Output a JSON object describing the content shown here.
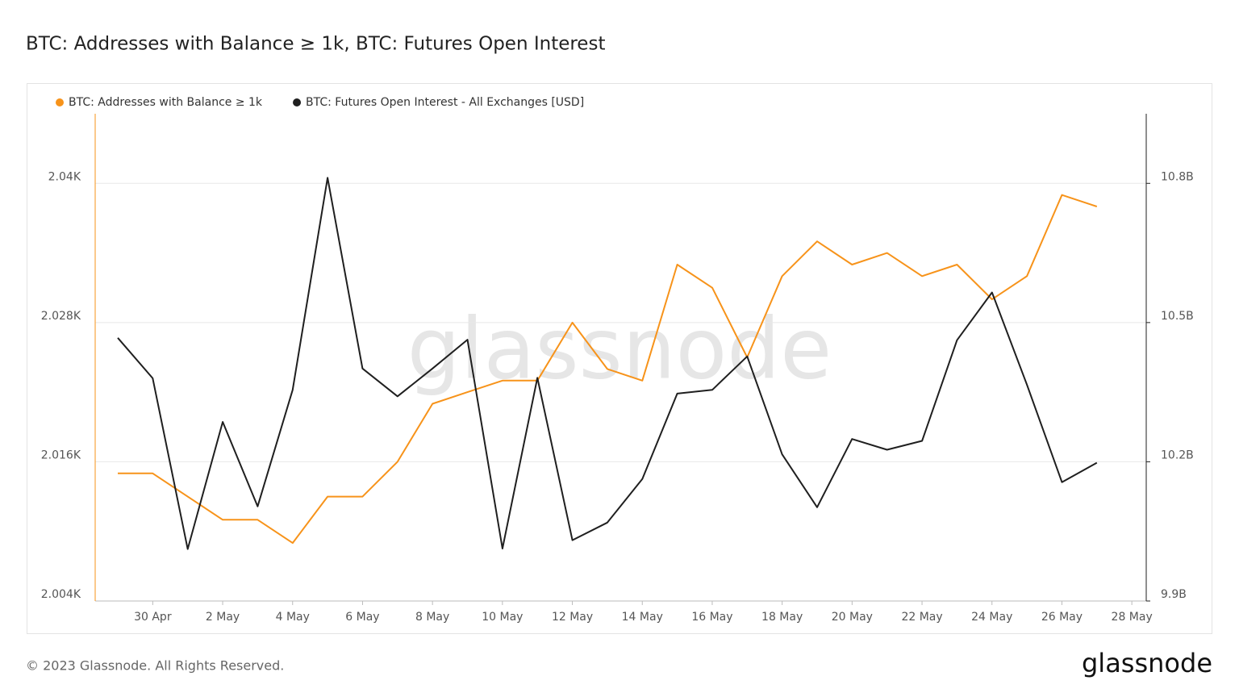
{
  "chart_data": {
    "type": "line",
    "title": "BTC: Addresses with Balance ≥ 1k, BTC: Futures Open Interest",
    "watermark": "glassnode",
    "x": [
      "29 Apr",
      "30 Apr",
      "1 May",
      "2 May",
      "3 May",
      "4 May",
      "5 May",
      "6 May",
      "7 May",
      "8 May",
      "9 May",
      "10 May",
      "11 May",
      "12 May",
      "13 May",
      "14 May",
      "15 May",
      "16 May",
      "17 May",
      "18 May",
      "19 May",
      "20 May",
      "21 May",
      "22 May",
      "23 May",
      "24 May",
      "25 May",
      "26 May",
      "27 May"
    ],
    "xticks": [
      "30 Apr",
      "2 May",
      "4 May",
      "6 May",
      "8 May",
      "10 May",
      "12 May",
      "14 May",
      "16 May",
      "18 May",
      "20 May",
      "22 May",
      "24 May",
      "26 May",
      "28 May"
    ],
    "series": [
      {
        "name": "BTC: Addresses with Balance ≥ 1k",
        "color": "#f7931a",
        "axis": "y",
        "values": [
          2015,
          2015,
          2013,
          2011,
          2011,
          2009,
          2013,
          2013,
          2016,
          2021,
          2022,
          2023,
          2023,
          2028,
          2024,
          2023,
          2033,
          2031,
          2025,
          2032,
          2035,
          2033,
          2034,
          2032,
          2033,
          2030,
          2032,
          2039,
          2038
        ]
      },
      {
        "name": "BTC: Futures Open Interest - All Exchanges [USD]",
        "color": "#1f1f1f",
        "axis": "y2",
        "values": [
          10467000000,
          10380000000,
          10012000000,
          10286000000,
          10104000000,
          10355000000,
          10812000000,
          10401000000,
          10341000000,
          10401000000,
          10463000000,
          10013000000,
          10381000000,
          10031000000,
          10069000000,
          10163000000,
          10347000000,
          10355000000,
          10427000000,
          10216000000,
          10102000000,
          10249000000,
          10226000000,
          10245000000,
          10462000000,
          10565000000,
          10366000000,
          10156000000,
          10198000000
        ]
      }
    ],
    "ylim": [
      2004,
      2046
    ],
    "yticks": [
      {
        "value": 2004,
        "label": "2.004K"
      },
      {
        "value": 2016,
        "label": "2.016K"
      },
      {
        "value": 2028,
        "label": "2.028K"
      },
      {
        "value": 2040,
        "label": "2.04K"
      }
    ],
    "y2lim": [
      9900000000,
      10950000000
    ],
    "y2ticks": [
      {
        "value": 9900000000,
        "label": "9.9B"
      },
      {
        "value": 10200000000,
        "label": "10.2B"
      },
      {
        "value": 10500000000,
        "label": "10.5B"
      },
      {
        "value": 10800000000,
        "label": "10.8B"
      }
    ],
    "grid": true,
    "legend": "top-left"
  },
  "footer": {
    "copyright": "© 2023 Glassnode. All Rights Reserved.",
    "logo": "glassnode"
  }
}
